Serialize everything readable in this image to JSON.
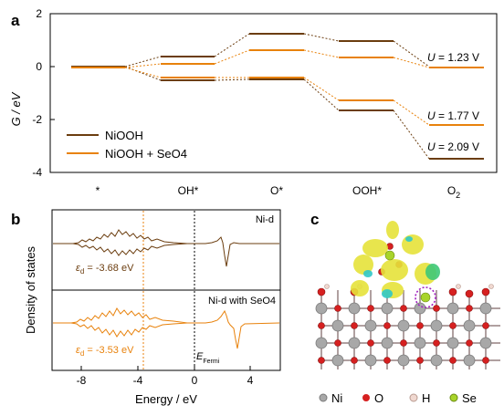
{
  "panels": {
    "a": "a",
    "b": "b",
    "c": "c"
  },
  "colors": {
    "niooh": "#6b3d0f",
    "seo4": "#e8820c",
    "ni_atom": "#a8a8a8",
    "o_atom": "#d62020",
    "h_atom": "#f0d8d0",
    "se_atom": "#a8d42a",
    "isosurface_yellow": "#e6e23a",
    "isosurface_cyan": "#30c8c8",
    "dash_circle": "#a020c0"
  },
  "chart_data": [
    {
      "type": "line",
      "title": "",
      "ylabel": "G / eV",
      "xlabel": "",
      "ylim": [
        -4,
        2
      ],
      "yticks": [
        "2",
        "0",
        "-2",
        "-4"
      ],
      "categories": [
        "*",
        "OH*",
        "O*",
        "OOH*",
        "O2"
      ],
      "series": [
        {
          "name": "NiOOH",
          "color": "#6b3d0f",
          "U": 2.09,
          "values": [
            0,
            0.4,
            1.27,
            0.97,
            0
          ],
          "values_shifted": [
            0,
            -0.5,
            -0.45,
            -1.65,
            -3.48
          ]
        },
        {
          "name": "NiOOH + SeO4",
          "color": "#e8820c",
          "U": 1.77,
          "values": [
            0,
            0.12,
            0.65,
            0.38,
            0
          ],
          "values_shifted": [
            0,
            -0.4,
            -0.42,
            -1.25,
            -2.2
          ]
        }
      ],
      "annotations": [
        "U = 1.23 V",
        "U = 1.77 V",
        "U = 2.09 V"
      ],
      "legend": [
        "NiOOH",
        "NiOOH + SeO4"
      ]
    },
    {
      "type": "line",
      "title": "",
      "ylabel": "Density of states",
      "xlabel": "Energy / eV",
      "xlim": [
        -10,
        6
      ],
      "xticks": [
        "-8",
        "-4",
        "0",
        "4"
      ],
      "series": [
        {
          "name": "Ni-d",
          "color": "#6b3d0f",
          "d_band_center": -3.68
        },
        {
          "name": "Ni-d with SeO4",
          "color": "#e8820c",
          "d_band_center": -3.53
        }
      ],
      "annotations": [
        "εd = -3.68 eV",
        "εd = -3.53 eV",
        "EFermi"
      ]
    }
  ],
  "a_labels": {
    "ylabel": "G / eV",
    "yticks": [
      "2",
      "0",
      "-2",
      "-4"
    ],
    "xcats": [
      "*",
      "OH*",
      "O*",
      "OOH*",
      "O"
    ],
    "o2_sub": "2",
    "u_prefix": "U",
    "u1": " = 1.23 V",
    "u2": " = 1.77 V",
    "u3": " = 2.09 V",
    "legend1": "NiOOH",
    "legend2": "NiOOH + SeO4"
  },
  "b_labels": {
    "ylabel": "Density of states",
    "xlabel": "Energy / eV",
    "xticks": [
      "-8",
      "-4",
      "0",
      "4"
    ],
    "top_label": "Ni-d",
    "bottom_label": "Ni-d with SeO4",
    "eps_symbol": "ε",
    "eps_sub": "d",
    "eps1_val": " = -3.68 eV",
    "eps2_val": " = -3.53 eV",
    "fermi_E": "E",
    "fermi_sub": "Fermi"
  },
  "c_legend": {
    "ni": "Ni",
    "o": "O",
    "h": "H",
    "se": "Se"
  }
}
